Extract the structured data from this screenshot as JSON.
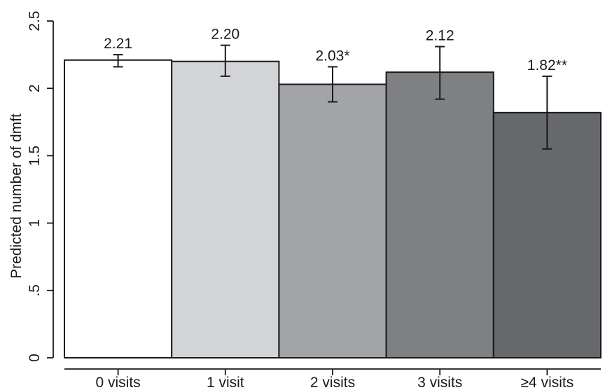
{
  "chart_data": {
    "type": "bar",
    "title": "",
    "xlabel": "",
    "ylabel": "Predicted number of dmft",
    "ylim": [
      0,
      2.5
    ],
    "yticks": [
      {
        "value": 0,
        "label": "0"
      },
      {
        "value": 0.5,
        "label": ".5"
      },
      {
        "value": 1,
        "label": "1"
      },
      {
        "value": 1.5,
        "label": "1.5"
      },
      {
        "value": 2,
        "label": "2"
      },
      {
        "value": 2.5,
        "label": "2.5"
      }
    ],
    "categories": [
      "0 visits",
      "1 visit",
      "2 visits",
      "3 visits",
      "≥4 visits"
    ],
    "values": [
      2.21,
      2.2,
      2.03,
      2.12,
      1.82
    ],
    "data_labels": [
      "2.21",
      "2.20",
      "2.03*",
      "2.12",
      "1.82**"
    ],
    "error_low": [
      2.16,
      2.09,
      1.9,
      1.92,
      1.55
    ],
    "error_high": [
      2.25,
      2.32,
      2.16,
      2.31,
      2.09
    ],
    "colors": [
      "#ffffff",
      "#d3d4d5",
      "#a2a4a7",
      "#7e8083",
      "#67686c"
    ],
    "grid": false,
    "legend": "none"
  }
}
